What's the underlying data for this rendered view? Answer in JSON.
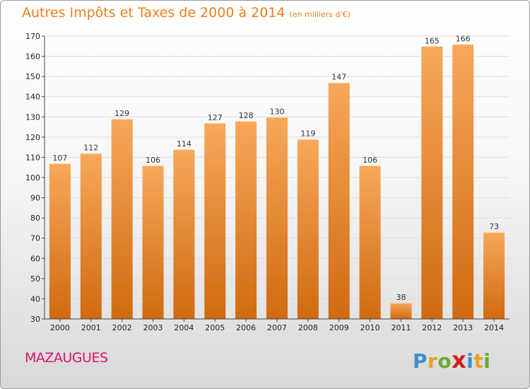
{
  "header": {
    "title": "Autres Impôts et Taxes de 2000 à 2014",
    "subtitle": "(en milliers d'€)"
  },
  "commune": "MAZAUGUES",
  "logo": {
    "text": "Proxiti",
    "letters": [
      "P",
      "r",
      "o",
      "x",
      "i",
      "t",
      "i"
    ],
    "colors": [
      "#3a8fd0",
      "#e8a020",
      "#6aaa30",
      "#d02020",
      "#3a8fd0",
      "#e8a020",
      "#6aaa30"
    ]
  },
  "colors": {
    "bar_light": "#f7a85a",
    "bar_dark": "#d06a10",
    "axis": "#444444",
    "grid": "#dddddd"
  },
  "chart_data": {
    "type": "bar",
    "categories": [
      "2000",
      "2001",
      "2002",
      "2003",
      "2004",
      "2005",
      "2006",
      "2007",
      "2008",
      "2009",
      "2010",
      "2011",
      "2012",
      "2013",
      "2014"
    ],
    "values": [
      107,
      112,
      129,
      106,
      114,
      127,
      128,
      130,
      119,
      147,
      106,
      38,
      165,
      166,
      73
    ],
    "ylim": [
      30,
      170
    ],
    "yticks": [
      30,
      40,
      50,
      60,
      70,
      80,
      90,
      100,
      110,
      120,
      130,
      140,
      150,
      160,
      170
    ],
    "grid": true,
    "legend": "none",
    "data_labels": true
  }
}
